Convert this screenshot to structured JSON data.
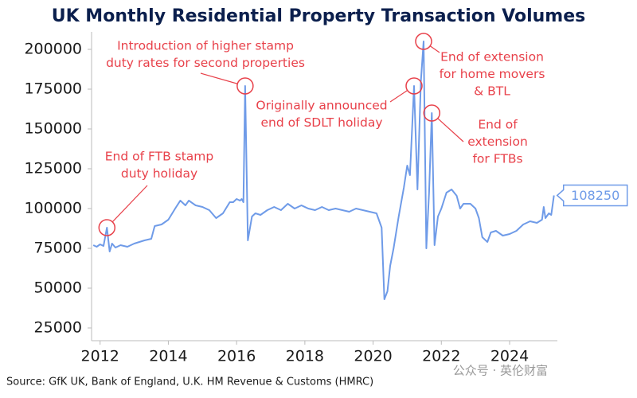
{
  "chart_data": {
    "type": "line",
    "title": "UK Monthly Residential Property Transaction Volumes",
    "source": "Source: GfK UK, Bank of England, U.K. HM Revenue & Customs (HMRC)",
    "watermark": "公众号 · 英伦财富",
    "xlim": [
      2011.75,
      2025.4
    ],
    "xticks": [
      2012,
      2014,
      2016,
      2018,
      2020,
      2022,
      2024
    ],
    "ylim": [
      17000,
      211000
    ],
    "yticks": [
      25000,
      50000,
      75000,
      100000,
      125000,
      150000,
      175000,
      200000
    ],
    "grid": false,
    "color": "#6f9be8",
    "annotation_color": "#e8414a",
    "x": [
      2011.8,
      2011.9,
      2012.0,
      2012.1,
      2012.2,
      2012.28,
      2012.35,
      2012.45,
      2012.6,
      2012.8,
      2013.0,
      2013.3,
      2013.5,
      2013.6,
      2013.8,
      2014.0,
      2014.2,
      2014.35,
      2014.5,
      2014.6,
      2014.8,
      2015.0,
      2015.2,
      2015.4,
      2015.6,
      2015.8,
      2015.9,
      2016.0,
      2016.1,
      2016.15,
      2016.2,
      2016.25,
      2016.33,
      2016.45,
      2016.55,
      2016.7,
      2016.9,
      2017.1,
      2017.3,
      2017.5,
      2017.7,
      2017.9,
      2018.1,
      2018.3,
      2018.5,
      2018.7,
      2018.9,
      2019.1,
      2019.3,
      2019.5,
      2019.7,
      2019.9,
      2020.1,
      2020.25,
      2020.33,
      2020.42,
      2020.5,
      2020.6,
      2020.75,
      2020.9,
      2021.0,
      2021.08,
      2021.2,
      2021.3,
      2021.4,
      2021.48,
      2021.56,
      2021.64,
      2021.72,
      2021.8,
      2021.9,
      2022.0,
      2022.15,
      2022.3,
      2022.45,
      2022.55,
      2022.65,
      2022.85,
      2023.0,
      2023.1,
      2023.2,
      2023.35,
      2023.45,
      2023.6,
      2023.8,
      2024.0,
      2024.2,
      2024.4,
      2024.6,
      2024.8,
      2024.95,
      2025.0,
      2025.05,
      2025.15,
      2025.22,
      2025.3
    ],
    "values": [
      77000,
      76000,
      77500,
      76500,
      88000,
      73000,
      78000,
      75500,
      77000,
      76000,
      78000,
      80000,
      81000,
      89000,
      90000,
      93000,
      100000,
      105000,
      102000,
      105000,
      102000,
      101000,
      99000,
      94000,
      97000,
      104000,
      104000,
      106000,
      105000,
      106000,
      104000,
      177000,
      80000,
      95000,
      97000,
      96000,
      99000,
      101000,
      99000,
      103000,
      100000,
      102000,
      100000,
      99000,
      101000,
      99000,
      100000,
      99000,
      98000,
      100000,
      99000,
      98000,
      97000,
      88000,
      43000,
      48000,
      64000,
      75000,
      95000,
      113000,
      127000,
      121000,
      177000,
      112000,
      180000,
      205000,
      75000,
      110000,
      160000,
      77000,
      95000,
      100000,
      110000,
      112000,
      108000,
      100000,
      103000,
      103000,
      100000,
      94000,
      82000,
      79000,
      85000,
      86000,
      83000,
      84000,
      86000,
      90000,
      92000,
      91000,
      93000,
      101000,
      94000,
      97000,
      96000,
      108250
    ],
    "annotations": [
      [
        "End of FTB stamp",
        "duty holiday"
      ],
      [
        "Introduction of higher stamp",
        "duty rates for second properties"
      ],
      [
        "Originally announced",
        "end of SDLT holiday"
      ],
      [
        "End of extension",
        "for home movers",
        "& BTL"
      ],
      [
        "End of",
        "extension",
        "for FTBs"
      ]
    ]
  }
}
